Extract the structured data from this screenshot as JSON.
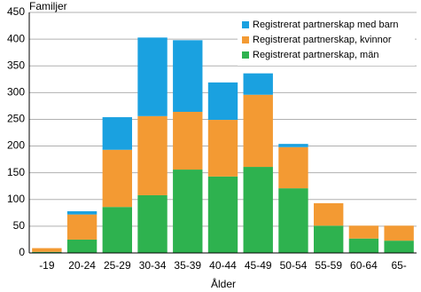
{
  "chart_data": {
    "type": "stacked-bar",
    "ylabel": "Familjer",
    "xlabel": "Ålder",
    "categories": [
      "-19",
      "20-24",
      "25-29",
      "30-34",
      "35-39",
      "40-44",
      "45-49",
      "50-54",
      "55-59",
      "60-64",
      "65-"
    ],
    "series": [
      {
        "name": "Registrerat partnerskap med barn",
        "color": "#1aa1e0",
        "values": [
          0,
          6,
          61,
          147,
          134,
          70,
          40,
          6,
          0,
          0,
          0
        ]
      },
      {
        "name": "Registrerat partnerskap, kvinnor",
        "color": "#f39a33",
        "values": [
          7,
          47,
          107,
          148,
          108,
          106,
          135,
          77,
          42,
          24,
          28
        ]
      },
      {
        "name": "Registrerat partnerskap, män",
        "color": "#2eb24f",
        "values": [
          2,
          25,
          86,
          108,
          156,
          143,
          161,
          121,
          51,
          27,
          23
        ]
      }
    ],
    "ylim": [
      0,
      450
    ],
    "yticks": [
      0,
      50,
      100,
      150,
      200,
      250,
      300,
      350,
      400,
      450
    ],
    "grid": true
  }
}
